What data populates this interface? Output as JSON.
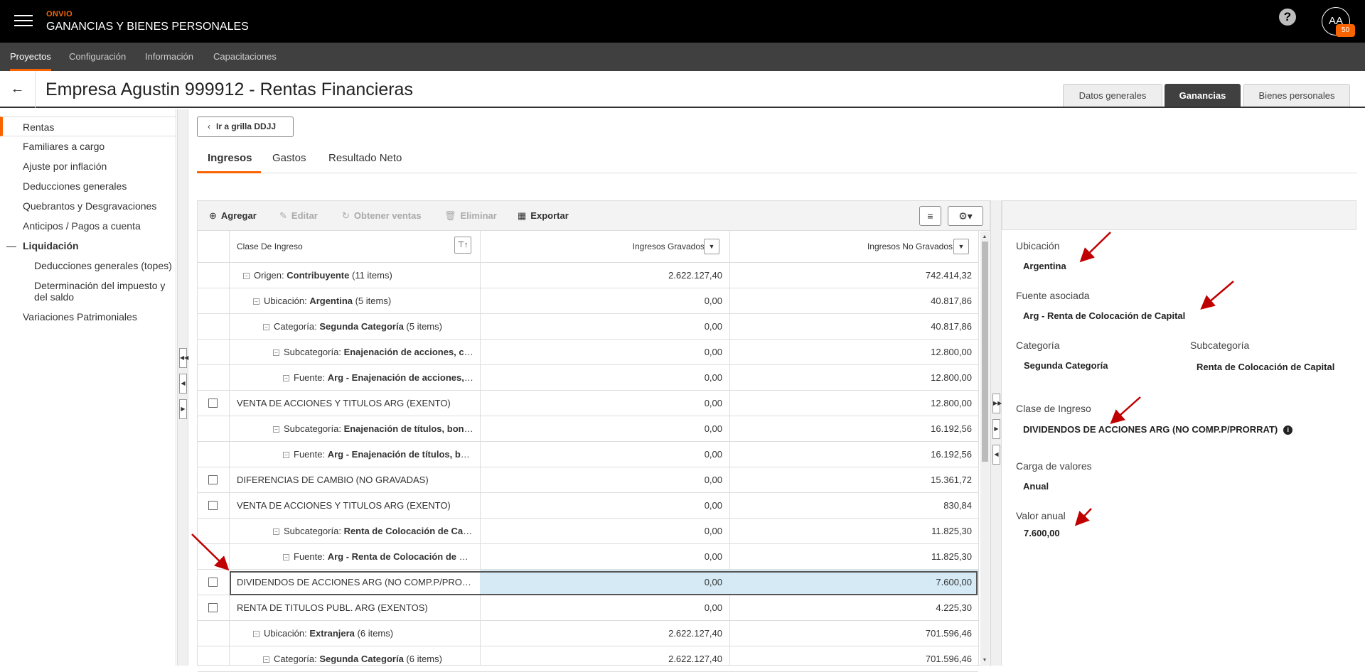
{
  "header": {
    "brand": "ONVIO",
    "app_title": "GANANCIAS Y BIENES PERSONALES",
    "help_icon": "?",
    "avatar_initials": "AA",
    "avatar_badge": "50"
  },
  "nav": {
    "items": [
      {
        "label": "Proyectos"
      },
      {
        "label": "Configuración"
      },
      {
        "label": "Información"
      },
      {
        "label": "Capacitaciones"
      }
    ]
  },
  "page": {
    "back_icon": "←",
    "title": "Empresa Agustin 999912 - Rentas Financieras",
    "tabs": [
      {
        "label": "Datos generales"
      },
      {
        "label": "Ganancias"
      },
      {
        "label": "Bienes personales"
      }
    ]
  },
  "sidebar": {
    "items": [
      {
        "label": "Rentas"
      },
      {
        "label": "Familiares a cargo"
      },
      {
        "label": "Ajuste por inflación"
      },
      {
        "label": "Deducciones generales"
      },
      {
        "label": "Quebrantos y Desgravaciones"
      },
      {
        "label": "Anticipos / Pagos a cuenta"
      },
      {
        "label": "Liquidación"
      },
      {
        "label": "Deducciones generales (topes)"
      },
      {
        "label": "Determinación del impuesto y del saldo"
      },
      {
        "label": "Variaciones Patrimoniales"
      }
    ]
  },
  "content": {
    "ddjj_button": "Ir a grilla DDJJ",
    "tabs": [
      {
        "label": "Ingresos"
      },
      {
        "label": "Gastos"
      },
      {
        "label": "Resultado Neto"
      }
    ],
    "toolbar": {
      "add": "Agregar",
      "edit": "Editar",
      "get_sales": "Obtener ventas",
      "delete": "Eliminar",
      "export": "Exportar"
    }
  },
  "grid": {
    "columns": {
      "clase": "Clase De Ingreso",
      "gravados": "Ingresos Gravados",
      "no_gravados": "Ingresos No Gravados"
    },
    "rows": [
      {
        "level": 1,
        "prefix": "Origen: ",
        "bold": "Contribuyente",
        "suffix": " (11 items)",
        "gravados": "2.622.127,40",
        "no_gravados": "742.414,32"
      },
      {
        "level": 2,
        "prefix": "Ubicación: ",
        "bold": "Argentina",
        "suffix": " (5 items)",
        "gravados": "0,00",
        "no_gravados": "40.817,86"
      },
      {
        "level": 3,
        "prefix": "Categoría: ",
        "bold": "Segunda Categoría",
        "suffix": " (5 items)",
        "gravados": "0,00",
        "no_gravados": "40.817,86"
      },
      {
        "level": 4,
        "prefix": "Subcategoría: ",
        "bold": "Enajenación de acciones, cuotas y participaciones sociales",
        "suffix": "",
        "gravados": "0,00",
        "no_gravados": "12.800,00"
      },
      {
        "level": 5,
        "prefix": "Fuente: ",
        "bold": "Arg - Enajenación de acciones, cuotas y participaciones sociales",
        "suffix": "",
        "gravados": "0,00",
        "no_gravados": "12.800,00"
      },
      {
        "level": 0,
        "text": "VENTA DE ACCIONES Y TITULOS ARG (EXENTO)",
        "gravados": "0,00",
        "no_gravados": "12.800,00"
      },
      {
        "level": 4,
        "prefix": "Subcategoría: ",
        "bold": "Enajenación de títulos, bonos y demás valores",
        "suffix": "",
        "gravados": "0,00",
        "no_gravados": "16.192,56"
      },
      {
        "level": 5,
        "prefix": "Fuente: ",
        "bold": "Arg - Enajenación de títulos, bonos y demás valores",
        "suffix": "",
        "gravados": "0,00",
        "no_gravados": "16.192,56"
      },
      {
        "level": 0,
        "text": "DIFERENCIAS DE CAMBIO (NO GRAVADAS)",
        "gravados": "0,00",
        "no_gravados": "15.361,72"
      },
      {
        "level": 0,
        "text": "VENTA DE ACCIONES Y TITULOS ARG (EXENTO)",
        "gravados": "0,00",
        "no_gravados": "830,84"
      },
      {
        "level": 4,
        "prefix": "Subcategoría: ",
        "bold": "Renta de Colocación de Capital",
        "suffix": "",
        "gravados": "0,00",
        "no_gravados": "11.825,30"
      },
      {
        "level": 5,
        "prefix": "Fuente: ",
        "bold": "Arg - Renta de Colocación de Capital",
        "suffix": "",
        "gravados": "0,00",
        "no_gravados": "11.825,30"
      },
      {
        "level": 0,
        "text": "DIVIDENDOS DE ACCIONES ARG (NO COMP.P/PRORRAT)",
        "gravados": "0,00",
        "no_gravados": "7.600,00",
        "selected": true
      },
      {
        "level": 0,
        "text": "RENTA DE TITULOS PUBL. ARG (EXENTOS)",
        "gravados": "0,00",
        "no_gravados": "4.225,30"
      },
      {
        "level": 2,
        "prefix": "Ubicación: ",
        "bold": "Extranjera",
        "suffix": " (6 items)",
        "gravados": "2.622.127,40",
        "no_gravados": "701.596,46"
      },
      {
        "level": 3,
        "prefix": "Categoría: ",
        "bold": "Segunda Categoría",
        "suffix": " (6 items)",
        "gravados": "2.622.127,40",
        "no_gravados": "701.596,46"
      }
    ]
  },
  "detail": {
    "ubicacion_label": "Ubicación",
    "ubicacion_value": "Argentina",
    "fuente_label": "Fuente asociada",
    "fuente_value": "Arg - Renta de Colocación de Capital",
    "categoria_label": "Categoría",
    "categoria_value": "Segunda Categoría",
    "subcategoria_label": "Subcategoría",
    "subcategoria_value": "Renta de Colocación de Capital",
    "clase_label": "Clase de Ingreso",
    "clase_value": "DIVIDENDOS DE ACCIONES ARG (NO COMP.P/PRORRAT)",
    "carga_label": "Carga de valores",
    "carga_value": "Anual",
    "valor_label": "Valor anual",
    "valor_value": "7.600,00"
  },
  "colors": {
    "accent": "#fa6400",
    "selected_row": "#d5eaf5",
    "annotation_arrow": "#c00000"
  }
}
